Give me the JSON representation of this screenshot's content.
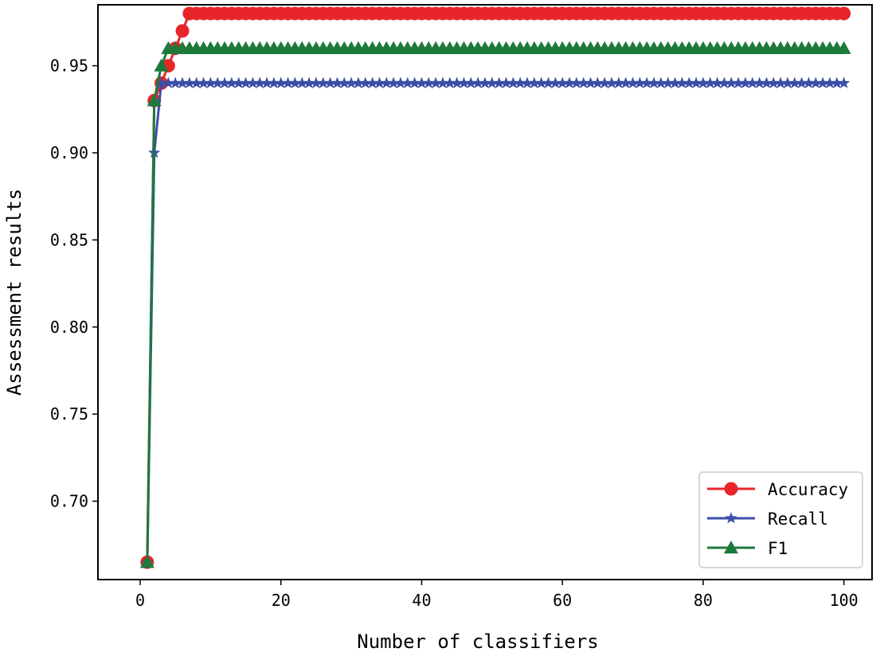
{
  "chart_data": {
    "type": "line",
    "title": "",
    "xlabel": "Number of classifiers",
    "ylabel": "Assessment results",
    "xlim": [
      -6,
      104
    ],
    "ylim": [
      0.655,
      0.985
    ],
    "xticks": [
      0,
      20,
      40,
      60,
      80,
      100
    ],
    "xtick_labels": [
      "0",
      "20",
      "40",
      "60",
      "80",
      "100"
    ],
    "yticks": [
      0.7,
      0.75,
      0.8,
      0.85,
      0.9,
      0.95
    ],
    "ytick_labels": [
      "0.70",
      "0.75",
      "0.80",
      "0.85",
      "0.90",
      "0.95"
    ],
    "grid": false,
    "legend_position": "lower-right",
    "series": [
      {
        "name": "Accuracy",
        "color": "#e8262a",
        "marker": "circle",
        "x": [
          1,
          2,
          3,
          4,
          5,
          6,
          7,
          100
        ],
        "y": [
          0.665,
          0.93,
          0.94,
          0.95,
          0.96,
          0.97,
          0.98,
          0.98
        ]
      },
      {
        "name": "Recall",
        "color": "#3a4fa8",
        "marker": "star",
        "x": [
          1,
          2,
          3,
          100
        ],
        "y": [
          0.665,
          0.9,
          0.94,
          0.94
        ]
      },
      {
        "name": "F1",
        "color": "#1c7a3a",
        "marker": "triangle",
        "x": [
          1,
          2,
          3,
          4,
          100
        ],
        "y": [
          0.665,
          0.93,
          0.95,
          0.96,
          0.96
        ]
      }
    ]
  }
}
